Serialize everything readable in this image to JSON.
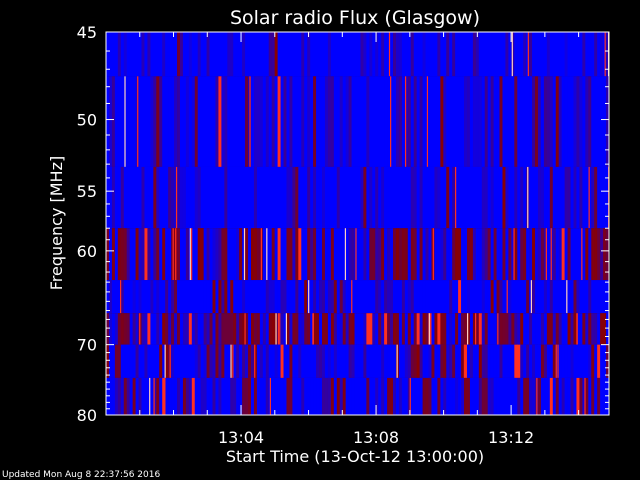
{
  "chart_data": {
    "type": "heatmap",
    "title": "Solar radio Flux (Glasgow)",
    "xlabel": "Start Time (13-Oct-12 13:00:00)",
    "ylabel": "Frequency [MHz]",
    "x_tick_labels": [
      "13:04",
      "13:08",
      "13:12"
    ],
    "x_tick_minutes": [
      4,
      8,
      12
    ],
    "xlim_minutes": [
      0,
      14.9
    ],
    "y_tick_labels": [
      "45",
      "50",
      "55",
      "60",
      "70",
      "80"
    ],
    "y_tick_values": [
      45,
      50,
      55,
      60,
      70,
      80
    ],
    "ylim": [
      45,
      80
    ],
    "y_scale": "reciprocal",
    "grid": false,
    "bands": [
      {
        "from": 45.0,
        "to": 47.4,
        "level": 0.05
      },
      {
        "from": 47.4,
        "to": 53.2,
        "level": 0.12
      },
      {
        "from": 53.2,
        "to": 58.0,
        "level": 0.08
      },
      {
        "from": 58.0,
        "to": 62.8,
        "level": 0.7
      },
      {
        "from": 62.8,
        "to": 66.3,
        "level": 0.15
      },
      {
        "from": 66.3,
        "to": 70.0,
        "level": 0.85
      },
      {
        "from": 70.0,
        "to": 74.4,
        "level": 0.35
      },
      {
        "from": 74.4,
        "to": 80.0,
        "level": 0.3
      }
    ],
    "colors": {
      "low": "#0000ff",
      "mid": "#8a0000",
      "high": "#ff3020",
      "peak": "#ffd0c0"
    }
  },
  "footer": "Updated Mon Aug  8 22:37:56 2016"
}
